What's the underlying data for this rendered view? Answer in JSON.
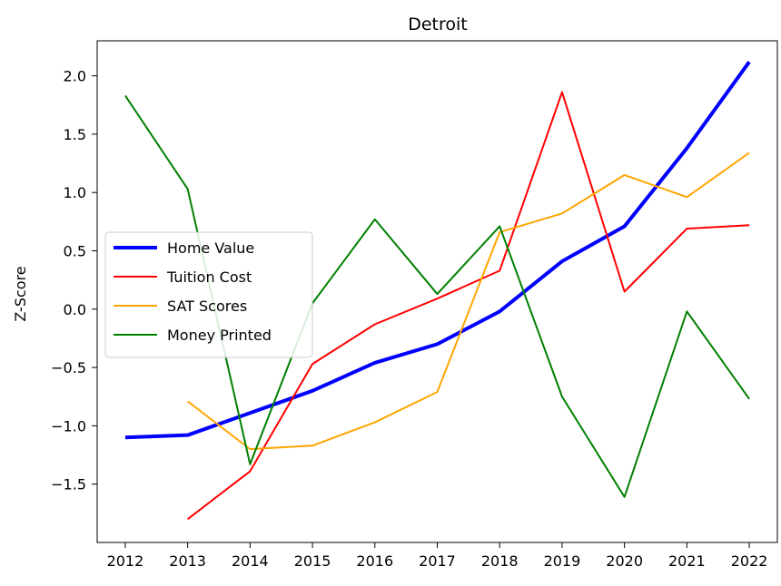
{
  "chart_data": {
    "type": "line",
    "title": "Detroit",
    "xlabel": "",
    "ylabel": "Z-Score",
    "x": [
      2012,
      2013,
      2014,
      2015,
      2016,
      2017,
      2018,
      2019,
      2020,
      2021,
      2022
    ],
    "x_ticks": [
      "2012",
      "2013",
      "2014",
      "2015",
      "2016",
      "2017",
      "2018",
      "2019",
      "2020",
      "2021",
      "2022"
    ],
    "y_ticks": [
      "2.0",
      "1.5",
      "1.0",
      "0.5",
      "0.0",
      "−0.5",
      "−1.0",
      "−1.5"
    ],
    "y_tick_values": [
      2.0,
      1.5,
      1.0,
      0.5,
      0.0,
      -0.5,
      -1.0,
      -1.5
    ],
    "xlim": [
      2011.55,
      2022.45
    ],
    "ylim": [
      -2.0,
      2.3
    ],
    "grid": false,
    "legend_position": "center-left",
    "series": [
      {
        "name": "Home Value",
        "color": "#0000ff",
        "line_weight": "bold",
        "values": [
          -1.1,
          -1.08,
          -0.89,
          -0.7,
          -0.46,
          -0.3,
          -0.02,
          0.41,
          0.71,
          1.38,
          2.12
        ]
      },
      {
        "name": "Tuition Cost",
        "color": "#ff0000",
        "line_weight": "normal",
        "values": [
          null,
          -1.8,
          -1.39,
          -0.47,
          -0.13,
          0.09,
          0.33,
          1.86,
          0.15,
          0.69,
          0.72
        ]
      },
      {
        "name": "SAT Scores",
        "color": "#ffa500",
        "line_weight": "normal",
        "values": [
          null,
          -0.79,
          -1.2,
          -1.17,
          -0.97,
          -0.71,
          0.66,
          0.82,
          1.15,
          0.96,
          1.34
        ]
      },
      {
        "name": "Money Printed",
        "color": "#008000",
        "line_weight": "normal",
        "values": [
          1.83,
          1.03,
          -1.33,
          0.05,
          0.77,
          0.13,
          0.71,
          -0.75,
          -1.61,
          -0.02,
          -0.77
        ]
      }
    ]
  }
}
